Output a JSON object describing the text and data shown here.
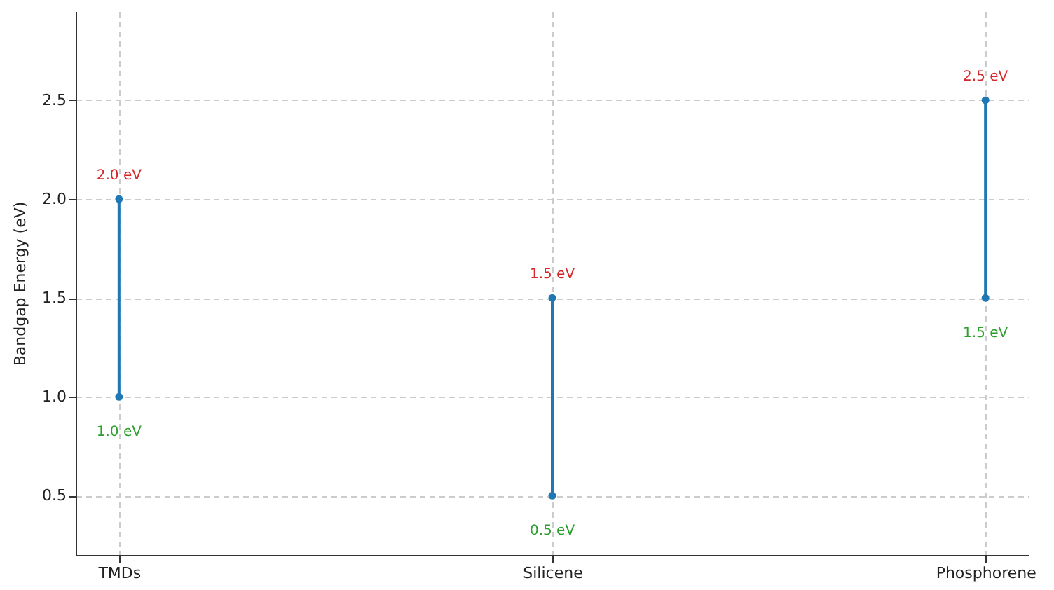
{
  "chart_data": {
    "type": "bar",
    "ylabel": "Bandgap Energy (eV)",
    "categories": [
      "TMDs",
      "Silicene",
      "Phosphorene"
    ],
    "series": [
      {
        "base": [
          1.0,
          0.5,
          1.5
        ],
        "values": [
          1.0,
          1.0,
          1.0
        ],
        "color": "#1f77b4"
      },
      {
        "type": "scatter",
        "values": [
          1.0,
          0.5,
          1.5
        ],
        "color": "#1f77b4",
        "value_labels": [
          "1.0 eV",
          "0.5 eV",
          "1.5 eV"
        ]
      },
      {
        "type": "scatter",
        "values": [
          2.0,
          1.5,
          2.5
        ],
        "color": "#1f77b4",
        "value_labels": [
          "2.0 eV",
          "1.5 eV",
          "2.5 eV"
        ]
      }
    ],
    "ylim": [
      0.2,
      2.95
    ],
    "yticks": [
      0.5,
      {
        "value": 1,
        "label": "1.0"
      },
      1.5,
      {
        "value": 2,
        "label": "2.0"
      },
      2.5
    ],
    "grid": true,
    "marker": "circle"
  }
}
